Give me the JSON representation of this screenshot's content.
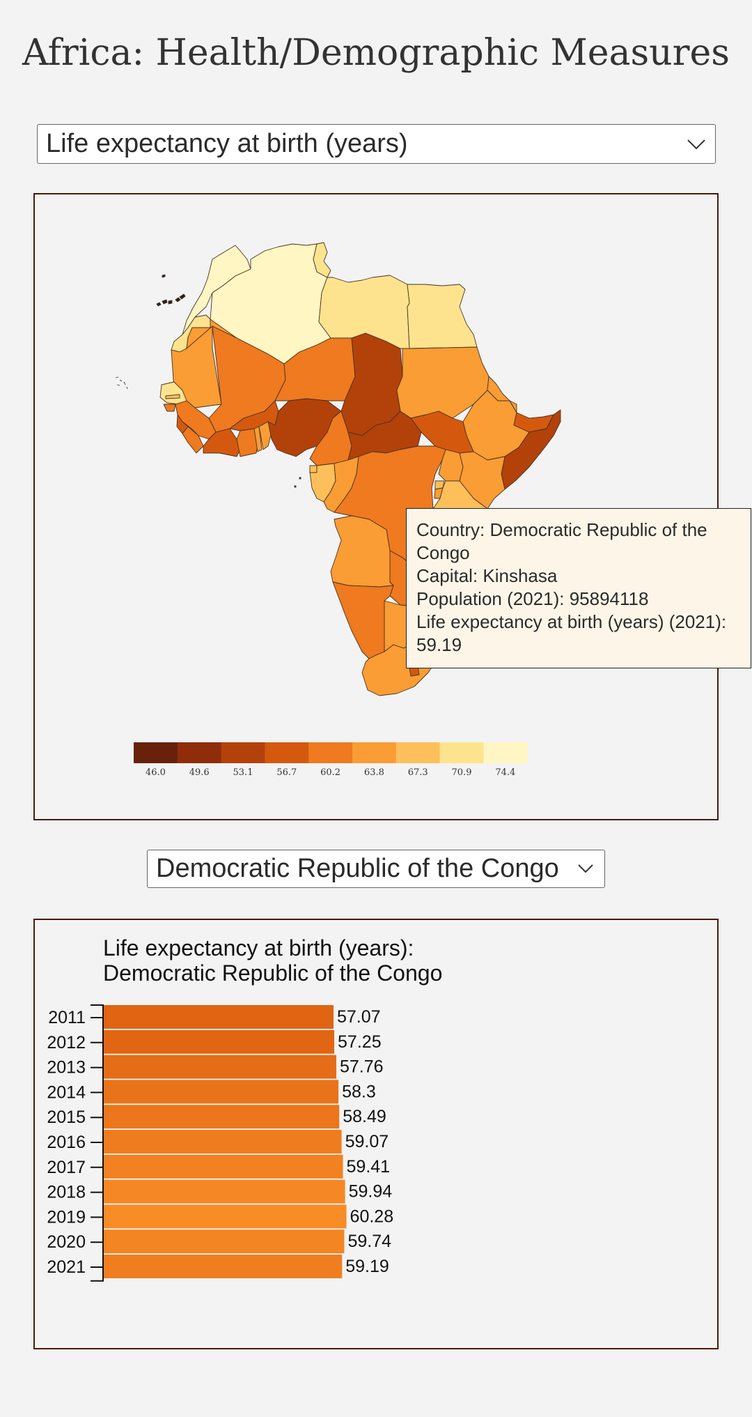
{
  "page": {
    "title": "Africa: Health/Demographic Measures"
  },
  "measure_select": {
    "value": "Life expectancy at birth (years)"
  },
  "country_select": {
    "value": "Democratic Republic of the Congo"
  },
  "tooltip": {
    "country": "Country: Democratic Republic of the Congo",
    "capital": "Capital: Kinshasa",
    "population": "Population (2021): 95894118",
    "measure": "Life expectancy at birth (years) (2021): 59.19"
  },
  "colors": {
    "legend": [
      "#68210b",
      "#8f2d0a",
      "#b2420a",
      "#d4590f",
      "#ef7a1f",
      "#f99d34",
      "#fdbf5a",
      "#fee38f",
      "#fff6c3"
    ],
    "bar_start": "#e06412",
    "bar_end": "#f88c27",
    "panel_border": "#4a1a08"
  },
  "chart_data": [
    {
      "type": "choropleth-legend",
      "title": "",
      "tick_labels": [
        "46.0",
        "49.6",
        "53.1",
        "56.7",
        "60.2",
        "63.8",
        "67.3",
        "70.9",
        "74.4"
      ]
    },
    {
      "type": "bar",
      "orientation": "horizontal",
      "title": "Life expectancy at birth (years):",
      "subtitle": "Democratic Republic of the Congo",
      "categories": [
        "2011",
        "2012",
        "2013",
        "2014",
        "2015",
        "2016",
        "2017",
        "2018",
        "2019",
        "2020",
        "2021"
      ],
      "values": [
        57.07,
        57.25,
        57.76,
        58.3,
        58.49,
        59.07,
        59.41,
        59.94,
        60.28,
        59.74,
        59.19
      ],
      "value_labels": [
        "57.07",
        "57.25",
        "57.76",
        "58.3",
        "58.49",
        "59.07",
        "59.41",
        "59.94",
        "60.28",
        "59.74",
        "59.19"
      ],
      "xlim": [
        40,
        76
      ],
      "grid": false
    }
  ]
}
